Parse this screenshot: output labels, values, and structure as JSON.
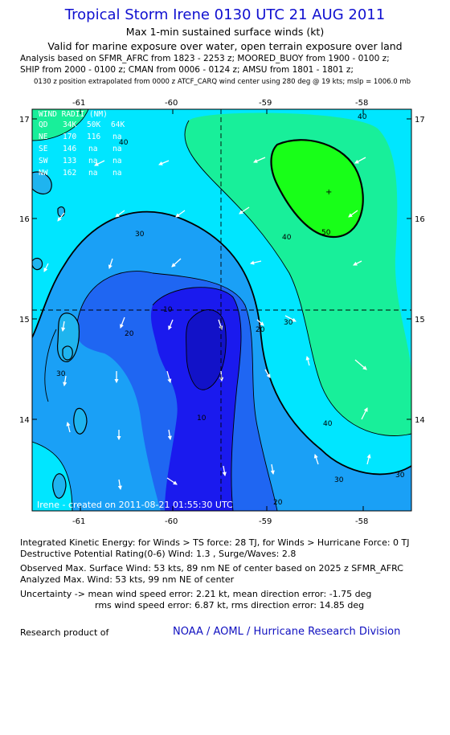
{
  "header": {
    "title": "Tropical Storm Irene 0130 UTC 21 AUG 2011",
    "subtitle1": "Max 1-min sustained surface winds (kt)",
    "subtitle2": "Valid for marine exposure over water, open terrain exposure over land",
    "line1": "Analysis based on SFMR_AFRC from 1823 - 2253 z; MOORED_BUOY from 1900 - 0100 z;",
    "line2": "SHIP from 2000 - 0100 z; CMAN from 0006 - 0124 z; AMSU from 1801 - 1801 z;",
    "line3": "0130 z position extrapolated from 0000 z ATCF_CARQ wind center using 280 deg @ 19 kts; mslp = 1006.0 mb"
  },
  "map": {
    "lon_ticks": [
      "-61",
      "-60",
      "-59",
      "-58"
    ],
    "lat_ticks": [
      "17",
      "16",
      "15",
      "14"
    ],
    "center": {
      "lon": -59.5,
      "lat": 15.1
    },
    "max_wind_marker": "+",
    "contour_labels": [
      "30",
      "40",
      "50",
      "40",
      "30",
      "20",
      "10",
      "20",
      "10",
      "40",
      "30",
      "30",
      "30",
      "20",
      "40"
    ],
    "wind_radii": {
      "title": "WIND RADII (NM)",
      "header": [
        "QD",
        "34K",
        "50K",
        "64K"
      ],
      "rows": [
        [
          "NE",
          "170",
          "116",
          "na"
        ],
        [
          "SE",
          "146",
          "na",
          "na"
        ],
        [
          "SW",
          "133",
          "na",
          "na"
        ],
        [
          "NW",
          "162",
          "na",
          "na"
        ]
      ]
    },
    "credit": "Irene - created on 2011-08-21 01:55:30 UTC",
    "colors": {
      "w0_10": "#1a1aee",
      "w10_20": "#1f66f2",
      "w20_30": "#1aa0f6",
      "w30_40": "#00e6ff",
      "w40_50": "#18ef9a",
      "w50_plus": "#18ff18"
    }
  },
  "footer": {
    "ike": "Integrated Kinetic Energy:  for Winds > TS force: 28 TJ,  for Winds > Hurricane Force: 0 TJ",
    "dpr": "Destructive Potential Rating(0-6)   Wind: 1.3 , Surge/Waves: 2.8",
    "obs_max": "Observed Max. Surface Wind: 53 kts, 89 nm NE of center based on 2025 z SFMR_AFRC",
    "ana_max": "Analyzed Max. Wind: 53 kts, 99 nm NE of center",
    "unc1": "Uncertainty -> mean wind speed error: 2.21 kt,   mean direction error:  -1.75 deg",
    "unc2": "rms wind speed error: 6.87 kt,   rms direction error:  14.85 deg",
    "research_label": "Research product of",
    "org": "NOAA / AOML / Hurricane Research Division"
  }
}
